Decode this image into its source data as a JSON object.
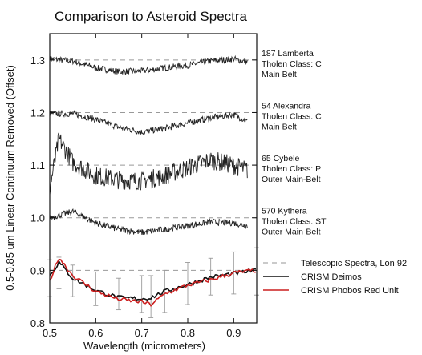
{
  "chart_data": {
    "type": "line",
    "title": "Comparison to Asteroid Spectra",
    "xlabel": "Wavelength (micrometers)",
    "ylabel": "0.5-0.85 um Linear Continuum Removed (Offset)",
    "xlim": [
      0.5,
      0.95
    ],
    "ylim": [
      0.8,
      1.35
    ],
    "x_ticks": [
      0.5,
      0.6,
      0.7,
      0.8,
      0.9
    ],
    "x_tick_labels": [
      "0.5",
      "0.6",
      "0.7",
      "0.8",
      "0.9"
    ],
    "y_ticks": [
      0.8,
      0.9,
      1.0,
      1.1,
      1.2,
      1.3
    ],
    "y_tick_labels": [
      "0.8",
      "0.9",
      "1.0",
      "1.1",
      "1.2",
      "1.3"
    ],
    "reference_lines": [
      1.3,
      1.2,
      1.1,
      1.0,
      0.9
    ],
    "asteroid_labels": [
      {
        "y": 1.3,
        "lines": [
          "187 Lamberta",
          "Tholen Class: C",
          "Main Belt"
        ]
      },
      {
        "y": 1.2,
        "lines": [
          "54 Alexandra",
          "Tholen Class: C",
          "Main Belt"
        ]
      },
      {
        "y": 1.1,
        "lines": [
          "65 Cybele",
          "Tholen Class: P",
          "Outer Main-Belt"
        ]
      },
      {
        "y": 1.0,
        "lines": [
          "570 Kythera",
          "Tholen Class: ST",
          "Outer Main-Belt"
        ]
      }
    ],
    "legend": {
      "placement": "bottom-right",
      "entries": [
        {
          "label": "Telescopic Spectra, Lon 92",
          "style": "dashed",
          "color": "#aaaaaa"
        },
        {
          "label": "CRISM Deimos",
          "style": "solid",
          "color": "#111111"
        },
        {
          "label": "CRISM Phobos Red Unit",
          "style": "solid",
          "color": "#cc1f1f"
        }
      ]
    },
    "series": [
      {
        "color": "#222222",
        "x": [
          0.5,
          0.55,
          0.6,
          0.65,
          0.7,
          0.75,
          0.8,
          0.85,
          0.9,
          0.93
        ],
        "y": [
          1.302,
          1.298,
          1.285,
          1.278,
          1.279,
          1.285,
          1.29,
          1.298,
          1.302,
          1.296
        ]
      },
      {
        "color": "#222222",
        "x": [
          0.5,
          0.55,
          0.6,
          0.65,
          0.7,
          0.75,
          0.8,
          0.85,
          0.9,
          0.93
        ],
        "y": [
          1.198,
          1.198,
          1.187,
          1.172,
          1.163,
          1.17,
          1.18,
          1.19,
          1.196,
          1.183
        ]
      },
      {
        "color": "#222222",
        "x": [
          0.5,
          0.52,
          0.55,
          0.6,
          0.65,
          0.7,
          0.75,
          0.8,
          0.85,
          0.9,
          0.93
        ],
        "y": [
          1.055,
          1.15,
          1.105,
          1.08,
          1.072,
          1.07,
          1.08,
          1.095,
          1.11,
          1.1,
          1.09
        ]
      },
      {
        "color": "#222222",
        "x": [
          0.5,
          0.55,
          0.6,
          0.65,
          0.7,
          0.75,
          0.8,
          0.85,
          0.9,
          0.93
        ],
        "y": [
          1.0,
          1.012,
          0.99,
          0.978,
          0.972,
          0.978,
          0.985,
          0.992,
          0.99,
          0.985
        ]
      },
      {
        "name": "Telescopic Spectra, Lon 92",
        "color": "#888888",
        "x": [
          0.5,
          0.52,
          0.55,
          0.6,
          0.65,
          0.7,
          0.72,
          0.75,
          0.8,
          0.85,
          0.9,
          0.95
        ],
        "y": [
          0.885,
          0.895,
          0.88,
          0.865,
          0.855,
          0.855,
          0.85,
          0.86,
          0.875,
          0.888,
          0.895,
          0.898
        ],
        "err": [
          0.035,
          0.03,
          0.03,
          0.032,
          0.03,
          0.035,
          0.04,
          0.04,
          0.04,
          0.035,
          0.04,
          0.045
        ]
      },
      {
        "name": "CRISM Deimos",
        "color": "#111111",
        "x": [
          0.5,
          0.52,
          0.55,
          0.6,
          0.65,
          0.7,
          0.72,
          0.75,
          0.8,
          0.85,
          0.9,
          0.95
        ],
        "y": [
          0.89,
          0.915,
          0.885,
          0.862,
          0.848,
          0.846,
          0.848,
          0.86,
          0.873,
          0.887,
          0.894,
          0.9
        ]
      },
      {
        "name": "CRISM Phobos Red Unit",
        "color": "#cc1f1f",
        "x": [
          0.5,
          0.52,
          0.55,
          0.6,
          0.65,
          0.7,
          0.72,
          0.75,
          0.8,
          0.85,
          0.9,
          0.95
        ],
        "y": [
          0.88,
          0.925,
          0.89,
          0.86,
          0.845,
          0.84,
          0.835,
          0.855,
          0.872,
          0.882,
          0.895,
          0.9
        ]
      }
    ]
  }
}
